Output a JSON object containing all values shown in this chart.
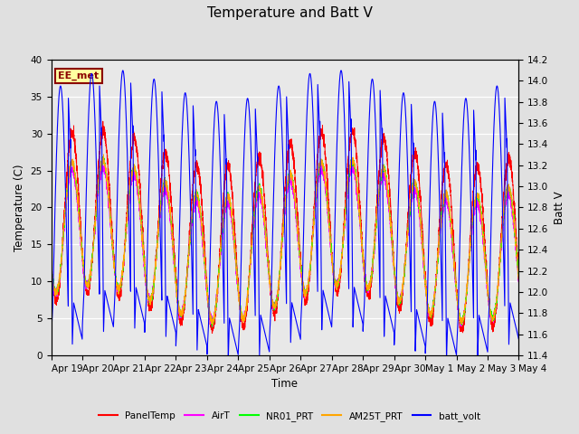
{
  "title": "Temperature and Batt V",
  "xlabel": "Time",
  "ylabel_left": "Temperature (C)",
  "ylabel_right": "Batt V",
  "ylim_left": [
    0,
    40
  ],
  "ylim_right": [
    11.4,
    14.2
  ],
  "annotation_text": "EE_met",
  "x_tick_labels": [
    "Apr 19",
    "Apr 20",
    "Apr 21",
    "Apr 22",
    "Apr 23",
    "Apr 24",
    "Apr 25",
    "Apr 26",
    "Apr 27",
    "Apr 28",
    "Apr 29",
    "Apr 30",
    "May 1",
    "May 2",
    "May 3",
    "May 4"
  ],
  "series_colors": {
    "PanelTemp": "#ff0000",
    "AirT": "#ff00ff",
    "NR01_PRT": "#00ff00",
    "AM25T_PRT": "#ffa500",
    "batt_volt": "#0000ff"
  },
  "legend_labels": [
    "PanelTemp",
    "AirT",
    "NR01_PRT",
    "AM25T_PRT",
    "batt_volt"
  ],
  "bg_color": "#e0e0e0",
  "plot_bg_color": "#e8e8e8",
  "title_fontsize": 11,
  "annotation_fontsize": 8,
  "n_days": 15,
  "figsize": [
    6.4,
    4.8
  ],
  "dpi": 100
}
